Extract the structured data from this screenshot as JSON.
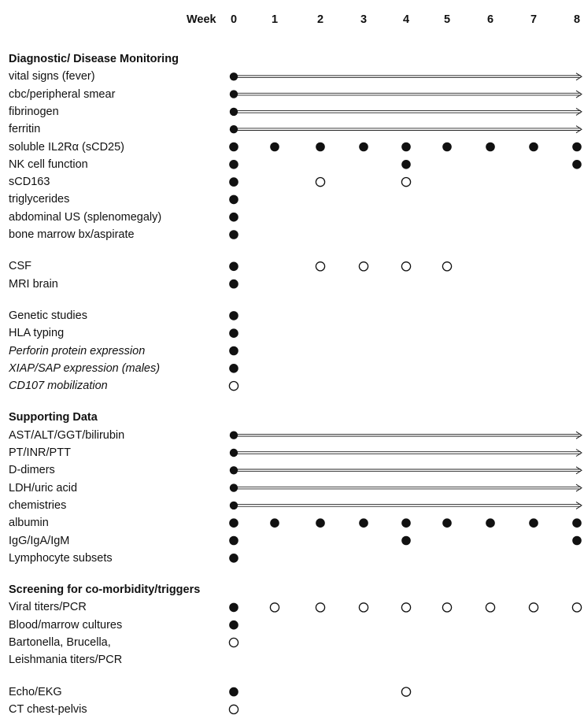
{
  "header": {
    "week_label": "Week",
    "weeks": [
      "0",
      "1",
      "2",
      "3",
      "4",
      "5",
      "6",
      "7",
      "8"
    ]
  },
  "rows": [
    {
      "label": "Diagnostic/ Disease Monitoring",
      "kind": "section"
    },
    {
      "label": "vital signs (fever)",
      "kind": "item",
      "arrow": true
    },
    {
      "label": "cbc/peripheral smear",
      "kind": "item",
      "arrow": true
    },
    {
      "label": "fibrinogen",
      "kind": "item",
      "arrow": true
    },
    {
      "label": "ferritin",
      "kind": "item",
      "arrow": true
    },
    {
      "label": "soluble IL2Rα (sCD25)",
      "kind": "item",
      "marks": [
        "F",
        "F",
        "F",
        "F",
        "F",
        "F",
        "F",
        "F",
        "F"
      ]
    },
    {
      "label": "NK cell function",
      "kind": "item",
      "marks": [
        "F",
        "",
        "",
        "",
        "F",
        "",
        "",
        "",
        "F"
      ]
    },
    {
      "label": "sCD163",
      "kind": "item",
      "marks": [
        "F",
        "",
        "O",
        "",
        "O",
        "",
        "",
        "",
        ""
      ]
    },
    {
      "label": "triglycerides",
      "kind": "item",
      "marks": [
        "F",
        "",
        "",
        "",
        "",
        "",
        "",
        "",
        ""
      ]
    },
    {
      "label": "abdominal US (splenomegaly)",
      "kind": "item",
      "marks": [
        "F",
        "",
        "",
        "",
        "",
        "",
        "",
        "",
        ""
      ]
    },
    {
      "label": "bone marrow bx/aspirate",
      "kind": "item",
      "marks": [
        "F",
        "",
        "",
        "",
        "",
        "",
        "",
        "",
        ""
      ]
    },
    {
      "kind": "gap"
    },
    {
      "label": "CSF",
      "kind": "item",
      "marks": [
        "F",
        "",
        "O",
        "O",
        "O",
        "O",
        "",
        "",
        ""
      ]
    },
    {
      "label": "MRI brain",
      "kind": "item",
      "marks": [
        "F",
        "",
        "",
        "",
        "",
        "",
        "",
        "",
        ""
      ]
    },
    {
      "kind": "gap"
    },
    {
      "label": "Genetic  studies",
      "kind": "item",
      "marks": [
        "F",
        "",
        "",
        "",
        "",
        "",
        "",
        "",
        ""
      ]
    },
    {
      "label": "HLA typing",
      "kind": "item",
      "marks": [
        "F",
        "",
        "",
        "",
        "",
        "",
        "",
        "",
        ""
      ]
    },
    {
      "label": "Perforin protein expression",
      "kind": "item",
      "italic": true,
      "marks": [
        "F",
        "",
        "",
        "",
        "",
        "",
        "",
        "",
        ""
      ]
    },
    {
      "label": "XIAP/SAP expression (males)",
      "kind": "item",
      "italic": true,
      "marks": [
        "F",
        "",
        "",
        "",
        "",
        "",
        "",
        "",
        ""
      ]
    },
    {
      "label": "CD107 mobilization",
      "kind": "item",
      "italic": true,
      "marks": [
        "O",
        "",
        "",
        "",
        "",
        "",
        "",
        "",
        ""
      ]
    },
    {
      "kind": "gap"
    },
    {
      "label": "Supporting Data",
      "kind": "section"
    },
    {
      "label": "AST/ALT/GGT/bilirubin",
      "kind": "item",
      "arrow": true
    },
    {
      "label": "PT/INR/PTT",
      "kind": "item",
      "arrow": true
    },
    {
      "label": "D-dimers",
      "kind": "item",
      "arrow": true
    },
    {
      "label": "LDH/uric acid",
      "kind": "item",
      "arrow": true
    },
    {
      "label": "chemistries",
      "kind": "item",
      "arrow": true
    },
    {
      "label": "albumin",
      "kind": "item",
      "marks": [
        "F",
        "F",
        "F",
        "F",
        "F",
        "F",
        "F",
        "F",
        "F"
      ]
    },
    {
      "label": "IgG/IgA/IgM",
      "kind": "item",
      "marks": [
        "F",
        "",
        "",
        "",
        "F",
        "",
        "",
        "",
        "F"
      ]
    },
    {
      "label": "Lymphocyte subsets",
      "kind": "item",
      "marks": [
        "F",
        "",
        "",
        "",
        "",
        "",
        "",
        "",
        ""
      ]
    },
    {
      "kind": "gap"
    },
    {
      "label": "Screening for co-morbidity/triggers",
      "kind": "section"
    },
    {
      "label": "Viral titers/PCR",
      "kind": "item",
      "marks": [
        "F",
        "O",
        "O",
        "O",
        "O",
        "O",
        "O",
        "O",
        "O"
      ]
    },
    {
      "label": "Blood/marrow cultures",
      "kind": "item",
      "marks": [
        "F",
        "",
        "",
        "",
        "",
        "",
        "",
        "",
        ""
      ]
    },
    {
      "label": "Bartonella, Brucella,",
      "kind": "item",
      "marks": [
        "O",
        "",
        "",
        "",
        "",
        "",
        "",
        "",
        ""
      ]
    },
    {
      "label": "Leishmania titers/PCR",
      "kind": "item"
    },
    {
      "kind": "gap"
    },
    {
      "label": "Echo/EKG",
      "kind": "item",
      "marks": [
        "F",
        "",
        "",
        "",
        "O",
        "",
        "",
        "",
        ""
      ]
    },
    {
      "label": "CT chest-pelvis",
      "kind": "item",
      "marks": [
        "O",
        "",
        "",
        "",
        "",
        "",
        "",
        "",
        ""
      ]
    }
  ],
  "colors": {
    "ink": "#111111",
    "arrow": "#222222",
    "open_fill": "#ffffff"
  }
}
